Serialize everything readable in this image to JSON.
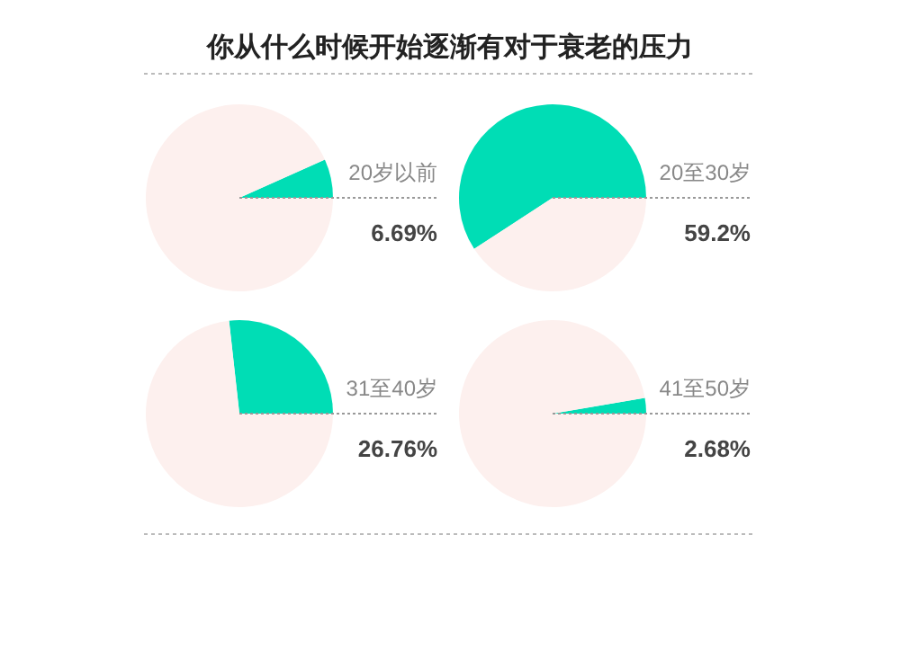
{
  "chart_data": [
    {
      "type": "pie",
      "title": "你从什么时候开始逐渐有对于衰老的压力",
      "categories": [
        "20岁以前",
        null
      ],
      "values": [
        6.69,
        93.31
      ],
      "colors": [
        "#00ddb5",
        "#fdf0ee"
      ],
      "value_labels": [
        "6.69%",
        null
      ]
    },
    {
      "type": "pie",
      "categories": [
        "20至30岁",
        null
      ],
      "values": [
        59.2,
        40.8
      ],
      "colors": [
        "#00ddb5",
        "#fdf0ee"
      ],
      "value_labels": [
        "59.2%",
        null
      ]
    },
    {
      "type": "pie",
      "categories": [
        "31至40岁",
        null
      ],
      "values": [
        26.76,
        73.24
      ],
      "colors": [
        "#00ddb5",
        "#fdf0ee"
      ],
      "value_labels": [
        "26.76%",
        null
      ]
    },
    {
      "type": "pie",
      "categories": [
        "41至50岁",
        null
      ],
      "values": [
        2.68,
        97.32
      ],
      "colors": [
        "#00ddb5",
        "#fdf0ee"
      ],
      "value_labels": [
        "2.68%",
        null
      ]
    }
  ]
}
